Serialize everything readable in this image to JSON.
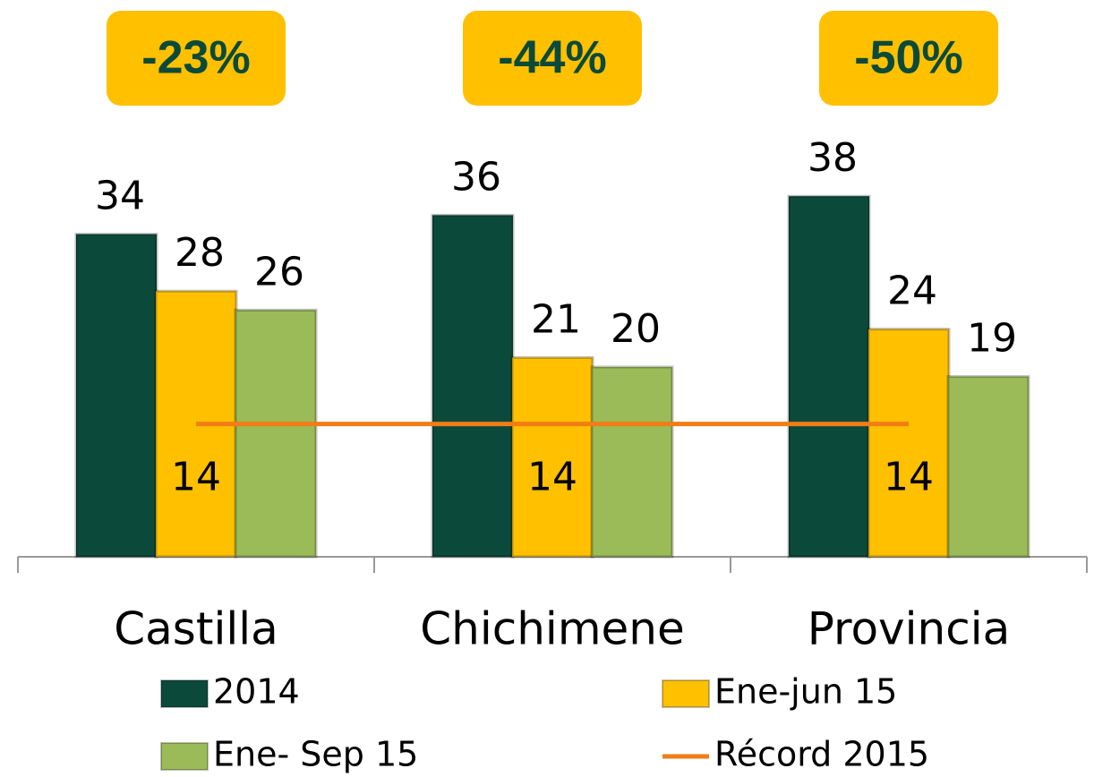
{
  "chart_data": {
    "type": "bar",
    "categories": [
      "Castilla",
      "Chichimene",
      "Provincia"
    ],
    "series": [
      {
        "name": "2014",
        "color": "#0b4a3b",
        "values": [
          34,
          36,
          38
        ]
      },
      {
        "name": "Ene-jun 15",
        "color": "#ffc000",
        "values": [
          28,
          21,
          24
        ]
      },
      {
        "name": "Ene- Sep 15",
        "color": "#9bbb59",
        "values": [
          26,
          20,
          19
        ]
      },
      {
        "name": "Récord 2015",
        "color": "#f07d16",
        "type": "line",
        "values": [
          14,
          14,
          14
        ]
      }
    ],
    "annotations": [
      "-23%",
      "-44%",
      "-50%"
    ],
    "annotation_color": "#ffc000",
    "ylim": [
      0,
      40
    ]
  }
}
